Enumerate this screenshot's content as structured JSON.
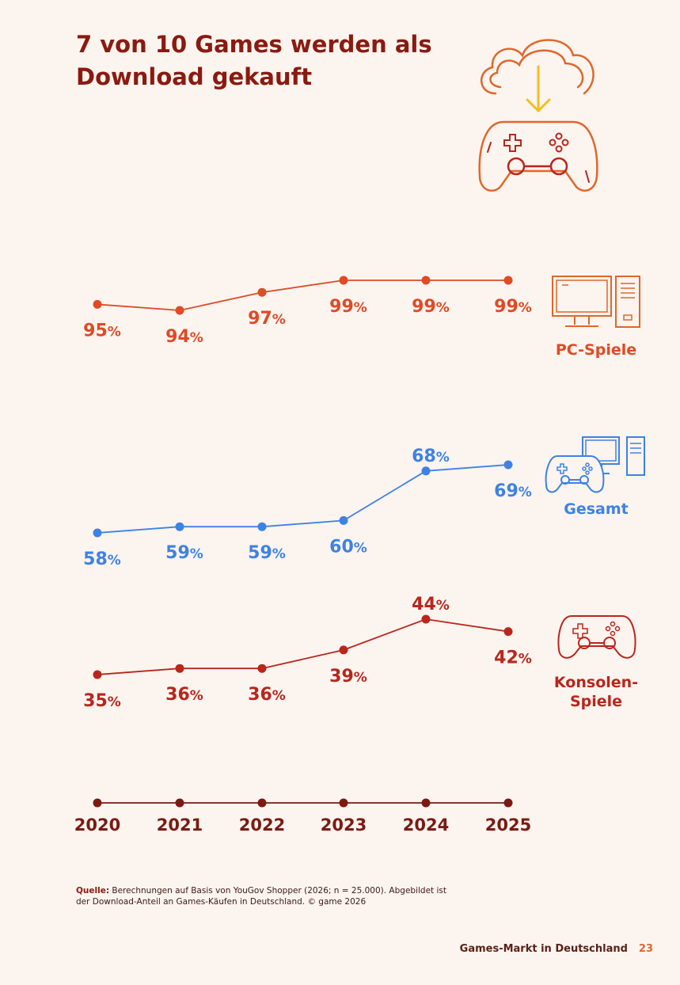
{
  "title_line1": "7 von 10 Games werden als",
  "title_line2": "Download gekauft",
  "colors": {
    "background": "#fcf4ef",
    "pc": "#e04a25",
    "gesamt": "#3e82e4",
    "konsole": "#b8261c",
    "axis": "#7a1a12",
    "title": "#8a1a10",
    "icon_orange": "#e0672b",
    "icon_yellow": "#f0c020"
  },
  "chart_data": {
    "type": "line",
    "x": [
      "2020",
      "2021",
      "2022",
      "2023",
      "2024",
      "2025"
    ],
    "unit": "%",
    "series": [
      {
        "name": "PC-Spiele",
        "values": [
          95,
          94,
          97,
          99,
          99,
          99
        ]
      },
      {
        "name": "Gesamt",
        "values": [
          58,
          59,
          59,
          60,
          68,
          69
        ]
      },
      {
        "name": "Konsolen-\nSpiele",
        "values": [
          35,
          36,
          36,
          39,
          44,
          42
        ]
      }
    ],
    "title": "7 von 10 Games werden als Download gekauft",
    "xlabel": "",
    "ylabel": "",
    "grid": false,
    "legend": "right"
  },
  "source_label": "Quelle:",
  "source_text": "Berechnungen auf Basis von YouGov Shopper (2026; n = 25.000). Abgebildet ist der Download-Anteil an Games-Käufen in Deutschland. © game 2026",
  "footer_text": "Games-Markt in Deutschland",
  "page_number": "23"
}
